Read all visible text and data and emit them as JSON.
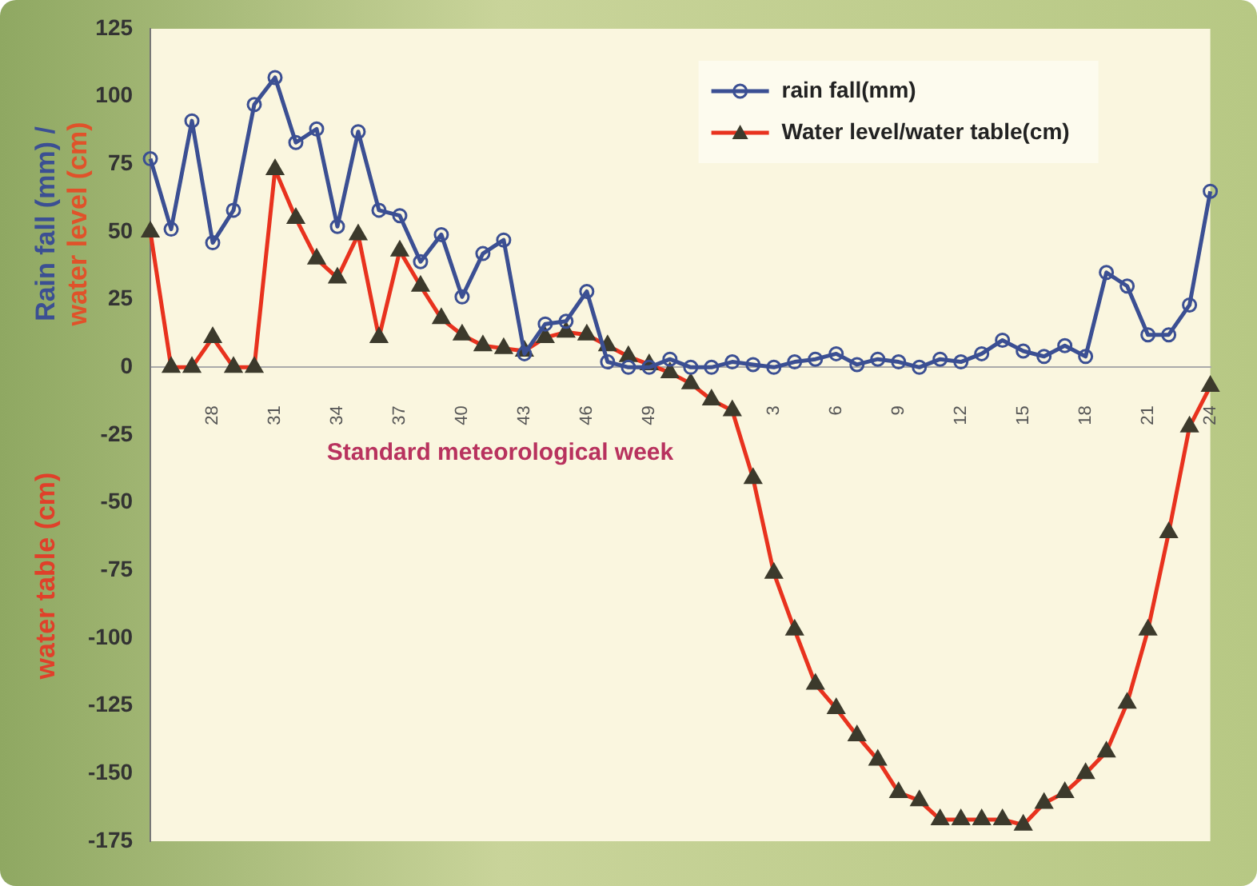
{
  "chart_data": {
    "type": "line",
    "xlabel": "Standard meteorological week",
    "ylabel": "Rain fall (mm) / water level (cm)",
    "annotations": [
      "water table (cm)"
    ],
    "categories": [
      null,
      null,
      null,
      "28",
      null,
      null,
      "31",
      null,
      null,
      "34",
      null,
      null,
      "37",
      null,
      null,
      "40",
      null,
      null,
      "43",
      null,
      null,
      "46",
      null,
      null,
      "49",
      null,
      null,
      null,
      null,
      null,
      "3",
      null,
      null,
      "6",
      null,
      null,
      "9",
      null,
      null,
      "12",
      null,
      null,
      "15",
      null,
      null,
      "18",
      null,
      null,
      "21",
      null,
      null,
      "24"
    ],
    "series": [
      {
        "name": "rain fall(mm)",
        "color": "#3b4f93",
        "marker": "circle",
        "values": [
          77,
          51,
          91,
          46,
          58,
          97,
          107,
          83,
          88,
          52,
          87,
          58,
          56,
          39,
          49,
          26,
          42,
          47,
          5,
          16,
          17,
          28,
          2,
          0,
          0,
          3,
          0,
          0,
          2,
          1,
          0,
          2,
          3,
          5,
          1,
          3,
          2,
          0,
          3,
          2,
          5,
          10,
          6,
          4,
          8,
          4,
          35,
          30,
          12,
          12,
          23,
          65
        ]
      },
      {
        "name": "Water level/water table(cm)",
        "color": "#e8321e",
        "marker": "triangle",
        "values": [
          50,
          0,
          0,
          11,
          0,
          0,
          73,
          55,
          40,
          33,
          49,
          11,
          43,
          30,
          18,
          12,
          8,
          7,
          6,
          11,
          13,
          12,
          8,
          4,
          1,
          -2,
          -6,
          -12,
          -16,
          -41,
          -76,
          -97,
          -117,
          -126,
          -136,
          -145,
          -157,
          -160,
          -167,
          -167,
          -167,
          -167,
          -169,
          -161,
          -157,
          -150,
          -142,
          -124,
          -97,
          -61,
          -22,
          -7
        ]
      }
    ],
    "ylim": [
      -175,
      125
    ],
    "yticks": [
      -175,
      -150,
      -125,
      -100,
      -75,
      -50,
      -25,
      0,
      25,
      50,
      75,
      100,
      125
    ],
    "grid": false,
    "legend": "top right"
  }
}
